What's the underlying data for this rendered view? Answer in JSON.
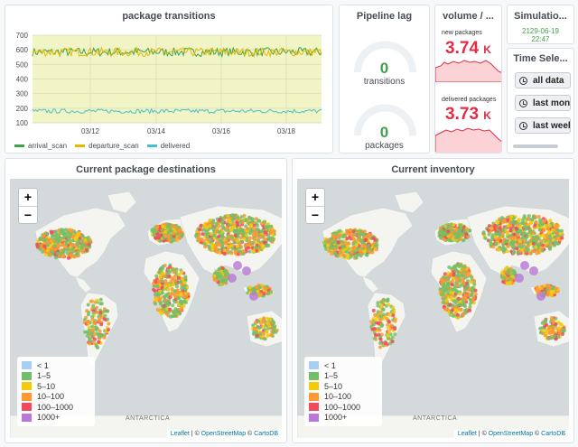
{
  "transitions_panel": {
    "title": "package transitions",
    "x_ticks": [
      "03/12",
      "03/14",
      "03/16",
      "03/18"
    ],
    "legend": [
      {
        "name": "arrival_scan",
        "color": "#3ea24a"
      },
      {
        "name": "departure_scan",
        "color": "#e6b800"
      },
      {
        "name": "delivered",
        "color": "#44c2cc"
      }
    ]
  },
  "chart_data": {
    "type": "line",
    "title": "package transitions",
    "x": [
      "03/12",
      "03/14",
      "03/16",
      "03/18"
    ],
    "ylim": [
      100,
      700
    ],
    "y_ticks": [
      100,
      200,
      300,
      400,
      500,
      600,
      700
    ],
    "grid": true,
    "legend_placement": "bottom-left",
    "series": [
      {
        "name": "arrival_scan",
        "color": "#3ea24a",
        "approx_mean": 590,
        "range": [
          555,
          615
        ]
      },
      {
        "name": "departure_scan",
        "color": "#e6b800",
        "approx_mean": 590,
        "range": [
          555,
          615
        ]
      },
      {
        "name": "delivered",
        "color": "#44c2cc",
        "approx_mean": 180,
        "range": [
          165,
          195
        ]
      }
    ]
  },
  "pipeline_lag": {
    "title": "Pipeline lag",
    "gauges": [
      {
        "value": "0",
        "label": "transitions"
      },
      {
        "value": "0",
        "label": "packages"
      }
    ]
  },
  "volume": {
    "title": "volume / ...",
    "stats": [
      {
        "label": "new packages",
        "value": "3.74",
        "unit": "K"
      },
      {
        "label": "delivered packages",
        "value": "3.73",
        "unit": "K"
      }
    ]
  },
  "simulation": {
    "title": "Simulatio...",
    "date": "2129-06-19",
    "time": "22:47"
  },
  "time_selector": {
    "title": "Time Sele...",
    "buttons": [
      "all data",
      "last month",
      "last week"
    ]
  },
  "maps": [
    {
      "title": "Current package destinations"
    },
    {
      "title": "Current inventory"
    }
  ],
  "map_common": {
    "zoom_in": "+",
    "zoom_out": "−",
    "antarctica": "ANTARCTICA",
    "attribution": {
      "leaflet": "Leaflet",
      "sep1": " | © ",
      "osm": "OpenStreetMap",
      "sep2": " © ",
      "carto": "CartoDB"
    },
    "legend": [
      {
        "label": "< 1",
        "color": "#a8cff2"
      },
      {
        "label": "1–5",
        "color": "#73bf69"
      },
      {
        "label": "5–10",
        "color": "#f2cc0c"
      },
      {
        "label": "10–100",
        "color": "#ff9830"
      },
      {
        "label": "100–1000",
        "color": "#f2495c"
      },
      {
        "label": "1000+",
        "color": "#b877d9"
      }
    ]
  }
}
